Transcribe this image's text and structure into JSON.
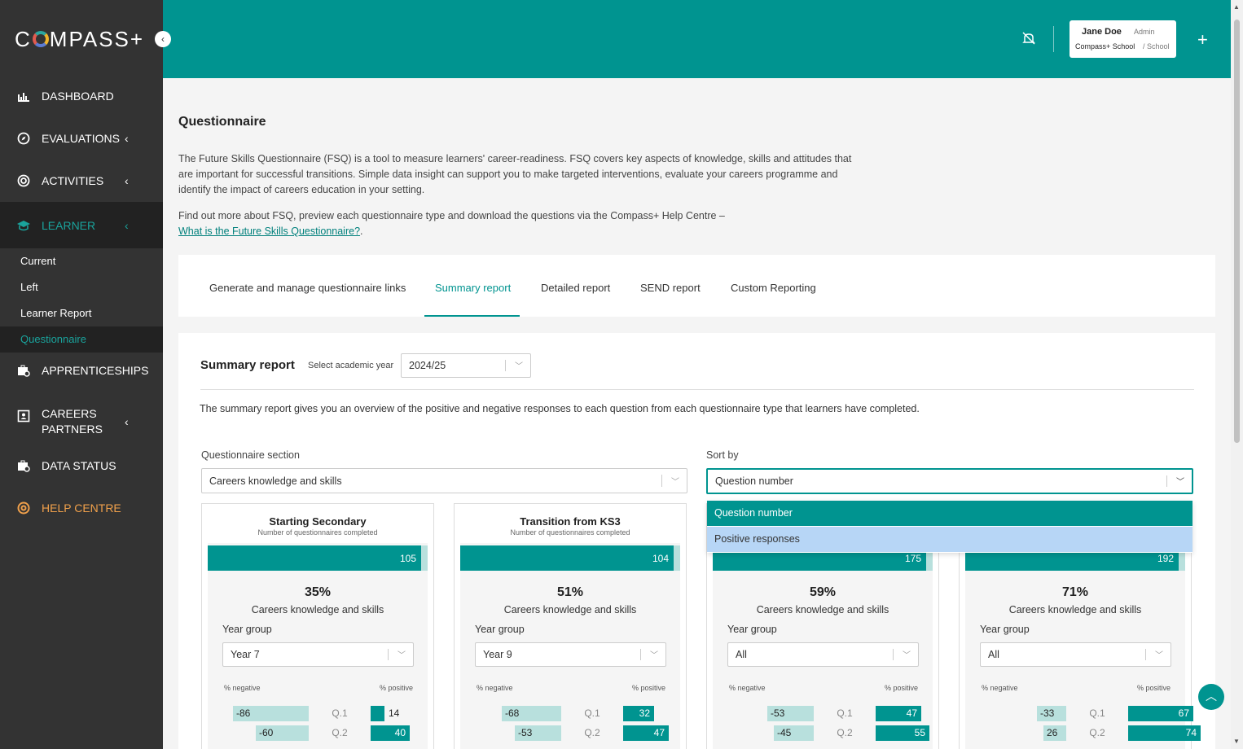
{
  "brand": {
    "logo_pre": "C",
    "logo_post": "MPASS+"
  },
  "sidebar": {
    "collapse_icon": "‹",
    "items": [
      {
        "label": "DASHBOARD",
        "icon": "chart-icon"
      },
      {
        "label": "EVALUATIONS",
        "icon": "compass-icon"
      },
      {
        "label": "ACTIVITIES",
        "icon": "activity-icon"
      },
      {
        "label": "LEARNER",
        "icon": "graduation-cap-icon"
      },
      {
        "label": "APPRENTICESHIPS",
        "icon": "briefcase-search-icon"
      },
      {
        "label": "CAREERS",
        "label2": "PARTNERS",
        "icon": "contact-icon"
      },
      {
        "label": "DATA STATUS",
        "icon": "briefcase-search-icon"
      },
      {
        "label": "HELP CENTRE",
        "icon": "lifebuoy-icon"
      }
    ],
    "learner_sub": [
      "Current",
      "Left",
      "Learner Report",
      "Questionnaire"
    ]
  },
  "header": {
    "user_name": "Jane Doe",
    "user_role": "Admin",
    "school_name": "Compass+ School",
    "school_type": "/ School"
  },
  "page": {
    "title": "Questionnaire",
    "intro": "The Future Skills Questionnaire (FSQ) is a tool to measure learners' career-readiness. FSQ covers key aspects of knowledge, skills and attitudes that are important for successful transitions. Simple data insight can support you to make targeted interventions, evaluate your careers programme and identify the impact of careers education in your setting.",
    "help_text": "Find out more about FSQ, preview each questionnaire type and download the questions via the Compass+ Help Centre –",
    "help_link": "What is the Future Skills Questionnaire?",
    "help_link_suffix": "."
  },
  "tabs": [
    "Generate and manage questionnaire links",
    "Summary report",
    "Detailed report",
    "SEND report",
    "Custom Reporting"
  ],
  "summary": {
    "title": "Summary report",
    "year_label": "Select academic year",
    "year_value": "2024/25",
    "description": "The summary report gives you an overview of the positive and negative responses to each question from each questionnaire type that learners have completed.",
    "section_label": "Questionnaire section",
    "section_value": "Careers knowledge and skills",
    "sort_label": "Sort by",
    "sort_value": "Question number",
    "sort_options": [
      "Question number",
      "Positive responses"
    ]
  },
  "panels": [
    {
      "title": "Starting Secondary",
      "subtitle": "Number of questionnaires completed",
      "count": "105",
      "count_fraction": 0.97,
      "pct": "35%",
      "section": "Careers knowledge and skills",
      "year_group_label": "Year group",
      "year_group": "Year 7",
      "neg_label": "% negative",
      "pos_label": "% positive",
      "rows": [
        {
          "q": "Q.1",
          "neg": -86,
          "pos": 14
        },
        {
          "q": "Q.2",
          "neg": -60,
          "pos": 40
        }
      ]
    },
    {
      "title": "Transition from KS3",
      "subtitle": "Number of questionnaires completed",
      "count": "104",
      "count_fraction": 0.97,
      "pct": "51%",
      "section": "Careers knowledge and skills",
      "year_group_label": "Year group",
      "year_group": "Year 9",
      "neg_label": "% negative",
      "pos_label": "% positive",
      "rows": [
        {
          "q": "Q.1",
          "neg": -68,
          "pos": 32
        },
        {
          "q": "Q.2",
          "neg": -53,
          "pos": 47
        }
      ]
    },
    {
      "title": "",
      "subtitle": "",
      "count": "175",
      "count_fraction": 0.97,
      "pct": "59%",
      "section": "Careers knowledge and skills",
      "year_group_label": "Year group",
      "year_group": "All",
      "neg_label": "% negative",
      "pos_label": "% positive",
      "rows": [
        {
          "q": "Q.1",
          "neg": -53,
          "pos": 47
        },
        {
          "q": "Q.2",
          "neg": -45,
          "pos": 55
        }
      ]
    },
    {
      "title": "",
      "subtitle": "",
      "count": "192",
      "count_fraction": 0.97,
      "pct": "71%",
      "section": "Careers knowledge and skills",
      "year_group_label": "Year group",
      "year_group": "All",
      "neg_label": "% negative",
      "pos_label": "% positive",
      "rows": [
        {
          "q": "Q.1",
          "neg": -33,
          "pos": 67
        },
        {
          "q": "Q.2",
          "neg": 26,
          "pos": 74
        }
      ]
    }
  ],
  "colors": {
    "primary": "#009490",
    "light": "#b8e0dd",
    "sidebar": "#333333",
    "help": "#f0a04b"
  }
}
